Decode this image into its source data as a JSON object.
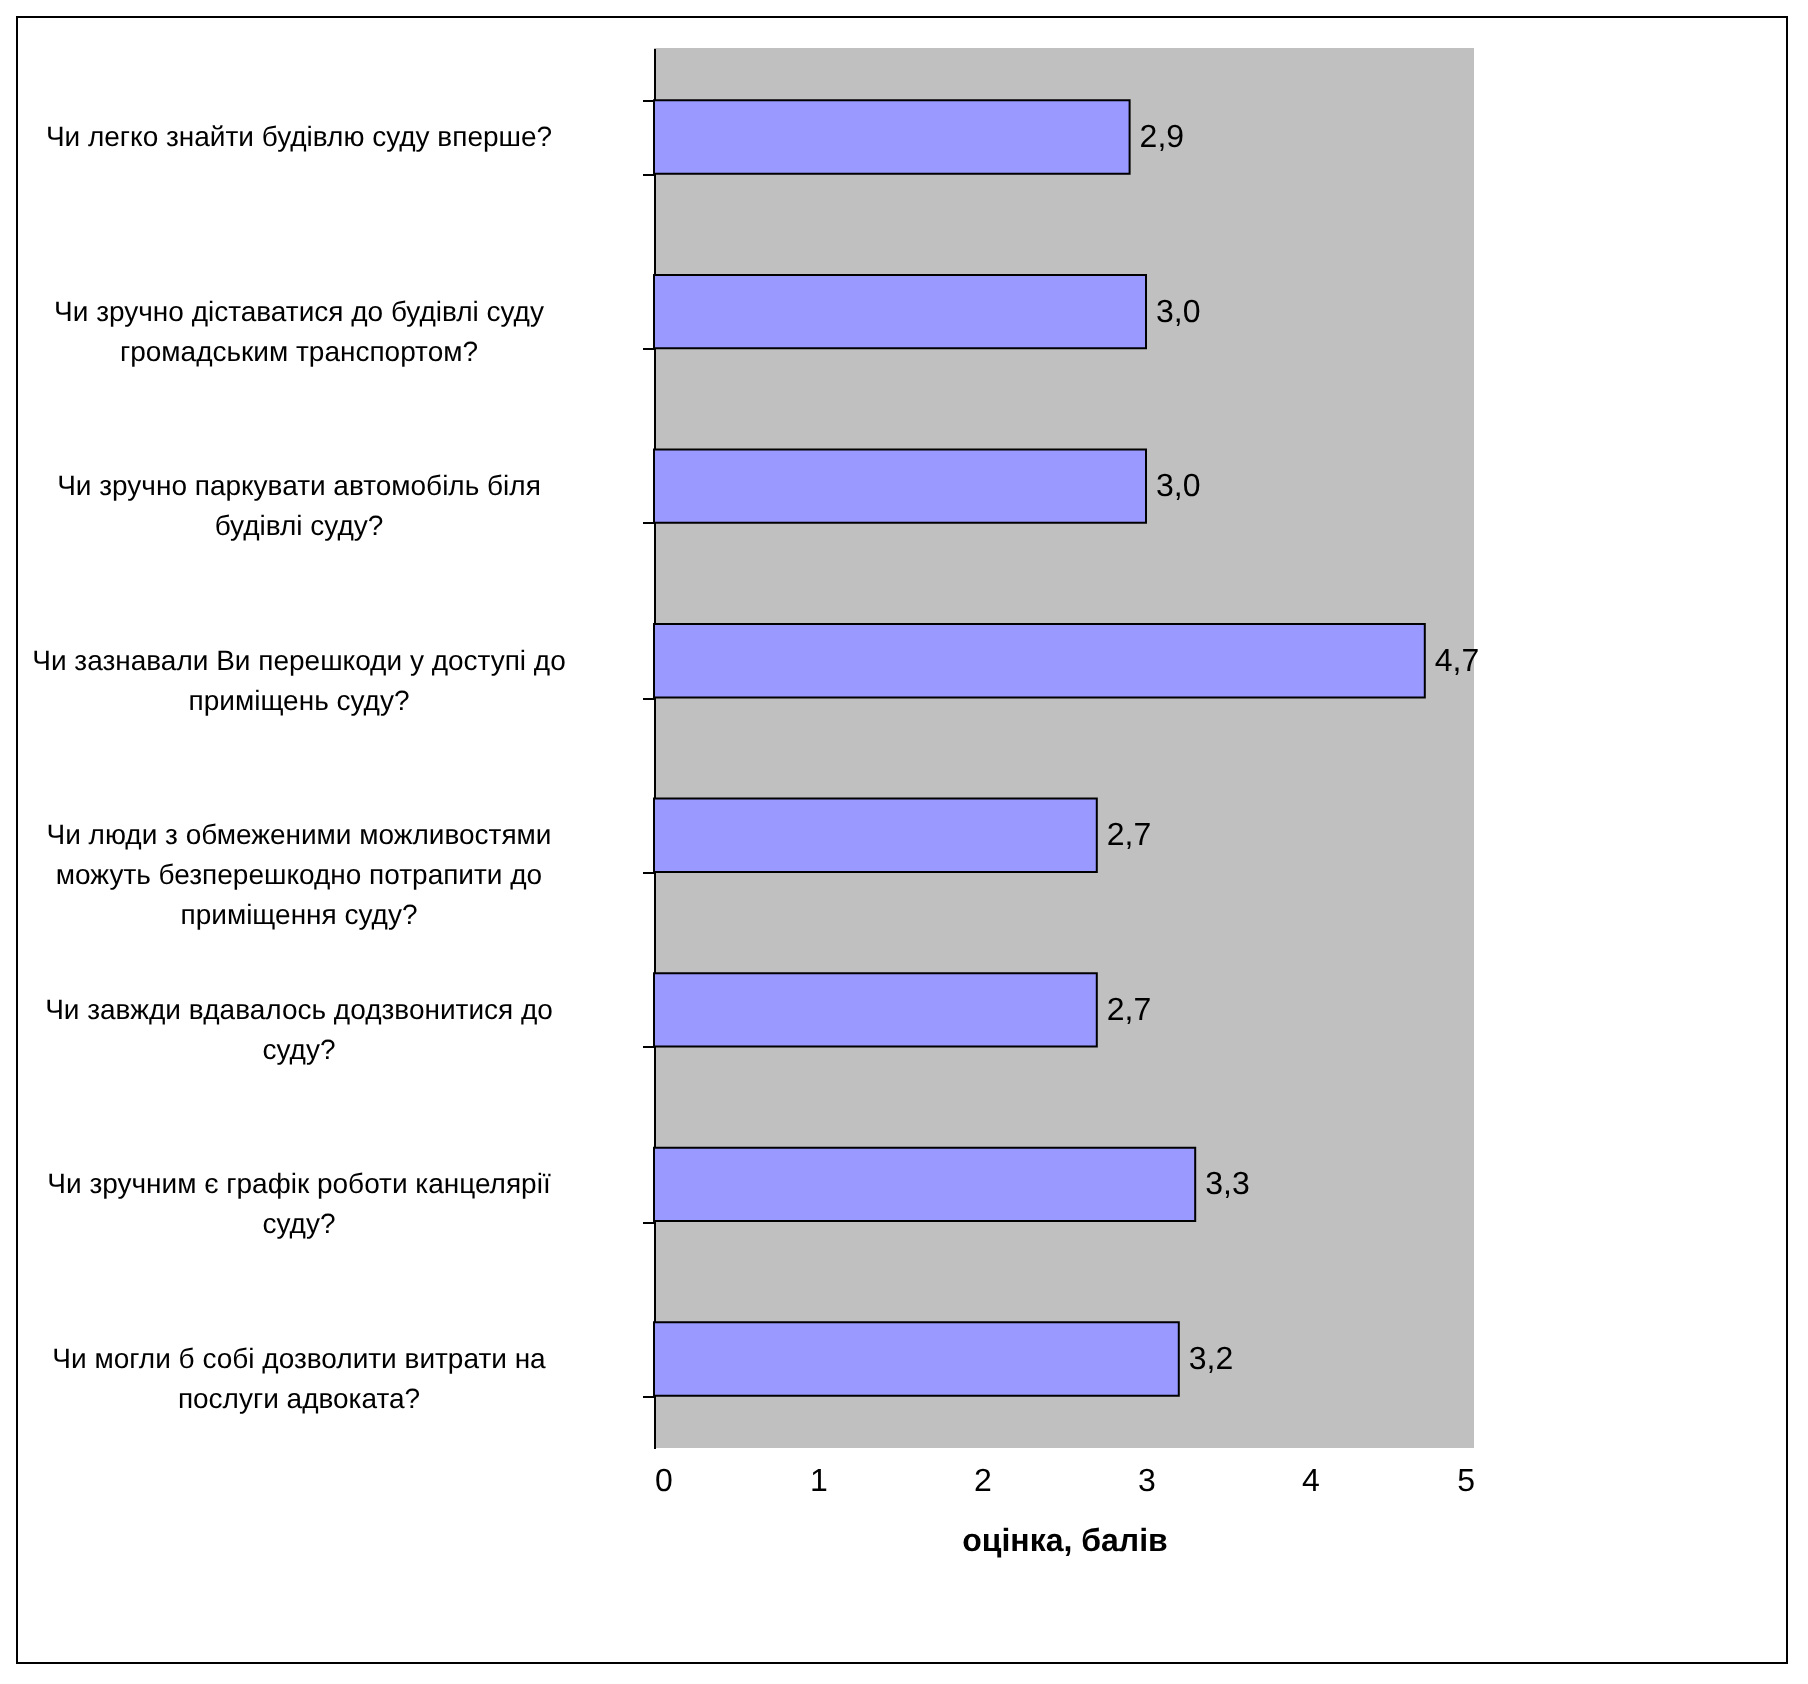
{
  "chart_data": {
    "type": "bar",
    "orientation": "horizontal",
    "xlabel": "оцінка, балів",
    "categories": [
      "Чи легко знайти будівлю суду вперше?",
      "Чи зручно діставатися до будівлі суду громадським транспортом?",
      "Чи зручно паркувати автомобіль біля будівлі суду?",
      "Чи зазнавали Ви перешкоди у доступі до приміщень суду?",
      "Чи люди з обмеженими можливостями можуть безперешкодно потрапити до приміщення суду?",
      "Чи завжди вдавалось додзвонитися до суду?",
      "Чи зручним є графік роботи канцелярії суду?",
      "Чи могли б собі дозволити витрати на послуги адвоката?"
    ],
    "values": [
      2.9,
      3.0,
      3.0,
      4.7,
      2.7,
      2.7,
      3.3,
      3.2
    ],
    "value_labels": [
      "2,9",
      "3,0",
      "3,0",
      "4,7",
      "2,7",
      "2,7",
      "3,3",
      "3,2"
    ],
    "color": "#9999ff",
    "xlim": [
      0,
      5
    ],
    "xticks": [
      0,
      1,
      2,
      3,
      4,
      5
    ],
    "grid": false
  }
}
